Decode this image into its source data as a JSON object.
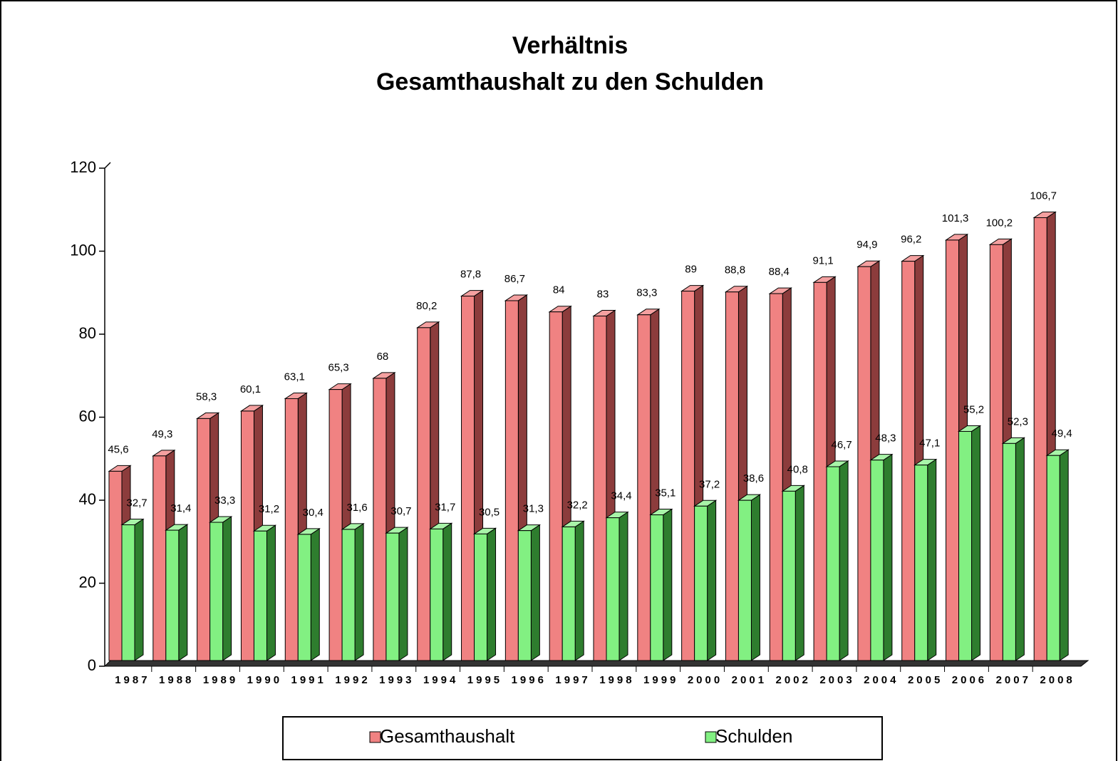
{
  "chart_data": {
    "type": "bar3d",
    "title": [
      "Verhältnis",
      "Gesamthaushalt  zu den Schulden"
    ],
    "categories": [
      "1987",
      "1988",
      "1989",
      "1990",
      "1991",
      "1992",
      "1993",
      "1994",
      "1995",
      "1996",
      "1997",
      "1998",
      "1999",
      "2000",
      "2001",
      "2002",
      "2003",
      "2004",
      "2005",
      "2006",
      "2007",
      "2008"
    ],
    "series": [
      {
        "name": "Gesamthaushalt",
        "color": "#f08282",
        "side": "#8c3c3c",
        "top": "#f4a0a0",
        "values": [
          45.6,
          49.3,
          58.3,
          60.1,
          63.1,
          65.3,
          68,
          80.2,
          87.8,
          86.7,
          84,
          83,
          83.3,
          89,
          88.8,
          88.4,
          91.1,
          94.9,
          96.2,
          101.3,
          100.2,
          106.7
        ],
        "value_labels": [
          "45,6",
          "49,3",
          "58,3",
          "60,1",
          "63,1",
          "65,3",
          "68",
          "80,2",
          "87,8",
          "86,7",
          "84",
          "83",
          "83,3",
          "89",
          "88,8",
          "88,4",
          "91,1",
          "94,9",
          "96,2",
          "101,3",
          "100,2",
          "106,7"
        ]
      },
      {
        "name": "Schulden",
        "color": "#82f082",
        "side": "#2e7d2e",
        "top": "#a8f4a8",
        "values": [
          32.7,
          31.4,
          33.3,
          31.2,
          30.4,
          31.6,
          30.7,
          31.7,
          30.5,
          31.3,
          32.2,
          34.4,
          35.1,
          37.2,
          38.6,
          40.8,
          46.7,
          48.3,
          47.1,
          55.2,
          52.3,
          49.4
        ],
        "value_labels": [
          "32,7",
          "31,4",
          "33,3",
          "31,2",
          "30,4",
          "31,6",
          "30,7",
          "31,7",
          "30,5",
          "31,3",
          "32,2",
          "34,4",
          "35,1",
          "37,2",
          "38,6",
          "40,8",
          "46,7",
          "48,3",
          "47,1",
          "55,2",
          "52,3",
          "49,4"
        ]
      }
    ],
    "ylim": [
      0,
      120
    ],
    "yticks": [
      0,
      20,
      40,
      60,
      80,
      100,
      120
    ],
    "legend": "bottom"
  }
}
